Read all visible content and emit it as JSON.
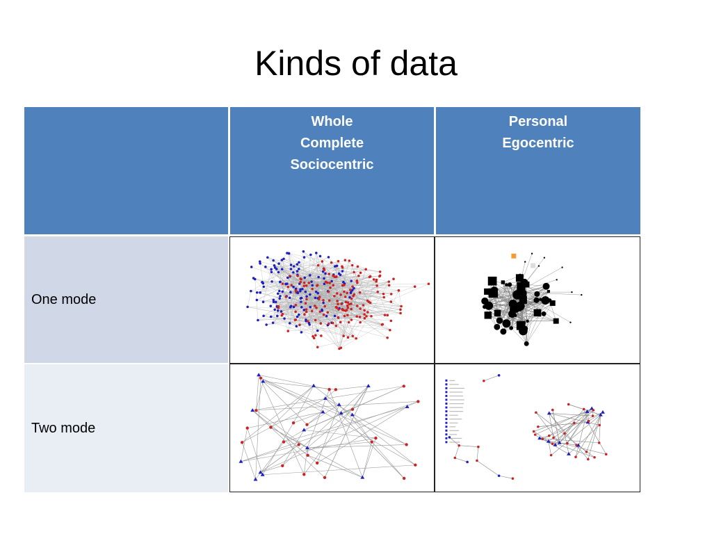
{
  "slide": {
    "title": "Kinds of data"
  },
  "table": {
    "corner": "",
    "columns": [
      {
        "lines": [
          "Whole",
          "Complete",
          "Sociocentric"
        ]
      },
      {
        "lines": [
          "Personal",
          "Egocentric"
        ]
      }
    ],
    "rows": [
      {
        "label": "One mode"
      },
      {
        "label": "Two mode"
      }
    ]
  },
  "network_images": {
    "whole_one_mode": {
      "icon": "dense-network-graph-icon",
      "colors": [
        "#1f1fbf",
        "#cc2222"
      ]
    },
    "personal_one_mode": {
      "icon": "egocentric-network-graph-icon",
      "colors": [
        "#000000",
        "#f39c32"
      ]
    },
    "whole_two_mode": {
      "icon": "bipartite-network-graph-icon",
      "colors": [
        "#1f1fbf",
        "#cc2222"
      ]
    },
    "personal_two_mode": {
      "icon": "bipartite-network-graph-icon",
      "colors": [
        "#1f1fbf",
        "#cc2222"
      ]
    }
  }
}
